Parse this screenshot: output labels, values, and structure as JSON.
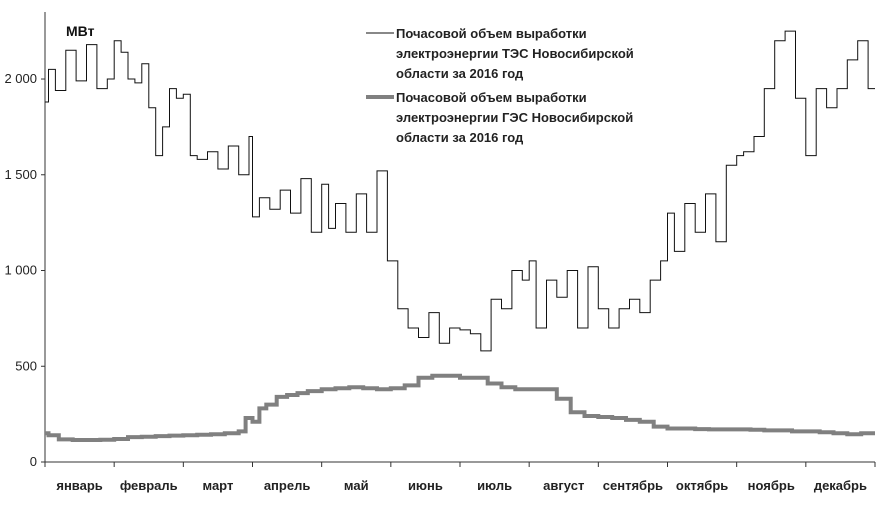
{
  "chart_data": {
    "type": "line",
    "ylabel": "МВт",
    "ylim": [
      0,
      2350
    ],
    "yticks": [
      0,
      500,
      1000,
      1500,
      2000
    ],
    "ytick_labels": [
      "0",
      "500",
      "1 000",
      "1 500",
      "2 000"
    ],
    "months": [
      "январь",
      "февраль",
      "март",
      "апрель",
      "май",
      "июнь",
      "июль",
      "август",
      "сентябрь",
      "октябрь",
      "ноябрь",
      "декабрь"
    ],
    "xlim": [
      0,
      12
    ],
    "grid": false,
    "legend_position": "top-right",
    "series": [
      {
        "name": [
          "Почасовой объем выработки",
          "электроэнергии ТЭС Новосибирской",
          "области за 2016 год"
        ],
        "color": "#111111",
        "style": "thin",
        "x": [
          0,
          0.05,
          0.15,
          0.3,
          0.45,
          0.6,
          0.75,
          0.9,
          1.0,
          1.1,
          1.2,
          1.3,
          1.4,
          1.5,
          1.6,
          1.7,
          1.8,
          1.9,
          2.0,
          2.1,
          2.2,
          2.35,
          2.5,
          2.65,
          2.8,
          2.95,
          3.0,
          3.1,
          3.25,
          3.4,
          3.55,
          3.7,
          3.85,
          4.0,
          4.1,
          4.2,
          4.35,
          4.5,
          4.65,
          4.8,
          4.95,
          5.1,
          5.25,
          5.4,
          5.55,
          5.7,
          5.85,
          6.0,
          6.15,
          6.3,
          6.45,
          6.6,
          6.75,
          6.9,
          7.0,
          7.1,
          7.25,
          7.4,
          7.55,
          7.7,
          7.85,
          8.0,
          8.15,
          8.3,
          8.45,
          8.6,
          8.75,
          8.9,
          9.0,
          9.1,
          9.25,
          9.4,
          9.55,
          9.7,
          9.85,
          10.0,
          10.1,
          10.25,
          10.4,
          10.55,
          10.7,
          10.85,
          11.0,
          11.15,
          11.3,
          11.45,
          11.6,
          11.75,
          11.9,
          12.0
        ],
        "y": [
          1880,
          2050,
          1940,
          2150,
          1990,
          2180,
          1950,
          2000,
          2200,
          2140,
          2000,
          1980,
          2080,
          1850,
          1600,
          1750,
          1950,
          1900,
          1920,
          1600,
          1580,
          1620,
          1530,
          1650,
          1500,
          1700,
          1280,
          1380,
          1320,
          1420,
          1300,
          1480,
          1200,
          1450,
          1220,
          1350,
          1200,
          1400,
          1200,
          1520,
          1050,
          800,
          700,
          650,
          780,
          620,
          700,
          690,
          670,
          580,
          850,
          800,
          1000,
          950,
          1050,
          700,
          950,
          860,
          1000,
          700,
          1020,
          800,
          700,
          800,
          850,
          780,
          950,
          1050,
          1300,
          1100,
          1350,
          1200,
          1400,
          1150,
          1550,
          1600,
          1620,
          1700,
          1950,
          2200,
          2250,
          1900,
          1600,
          1950,
          1850,
          1950,
          2100,
          2200,
          1950,
          1950
        ]
      },
      {
        "name": [
          "Почасовой объем выработки",
          "электроэнергии ГЭС Новосибирской",
          "области за 2016 год"
        ],
        "color": "#808080",
        "style": "thick",
        "x": [
          0,
          0.05,
          0.2,
          0.4,
          0.6,
          0.8,
          1.0,
          1.2,
          1.4,
          1.6,
          1.8,
          2.0,
          2.2,
          2.4,
          2.6,
          2.8,
          2.9,
          3.0,
          3.1,
          3.2,
          3.35,
          3.5,
          3.65,
          3.8,
          4.0,
          4.2,
          4.4,
          4.6,
          4.8,
          5.0,
          5.2,
          5.4,
          5.6,
          5.8,
          6.0,
          6.2,
          6.4,
          6.6,
          6.8,
          7.0,
          7.2,
          7.4,
          7.6,
          7.8,
          8.0,
          8.2,
          8.4,
          8.6,
          8.8,
          9.0,
          9.2,
          9.4,
          9.6,
          9.8,
          10.0,
          10.2,
          10.4,
          10.6,
          10.8,
          11.0,
          11.2,
          11.4,
          11.6,
          11.8,
          12.0
        ],
        "y": [
          150,
          140,
          118,
          115,
          115,
          116,
          120,
          130,
          132,
          135,
          138,
          140,
          142,
          145,
          150,
          160,
          230,
          210,
          280,
          300,
          340,
          350,
          360,
          370,
          380,
          385,
          390,
          385,
          380,
          385,
          400,
          440,
          450,
          450,
          440,
          440,
          410,
          390,
          380,
          380,
          380,
          330,
          260,
          240,
          235,
          230,
          220,
          210,
          185,
          175,
          175,
          172,
          170,
          170,
          170,
          168,
          165,
          165,
          160,
          160,
          155,
          150,
          145,
          150,
          150
        ]
      }
    ]
  }
}
